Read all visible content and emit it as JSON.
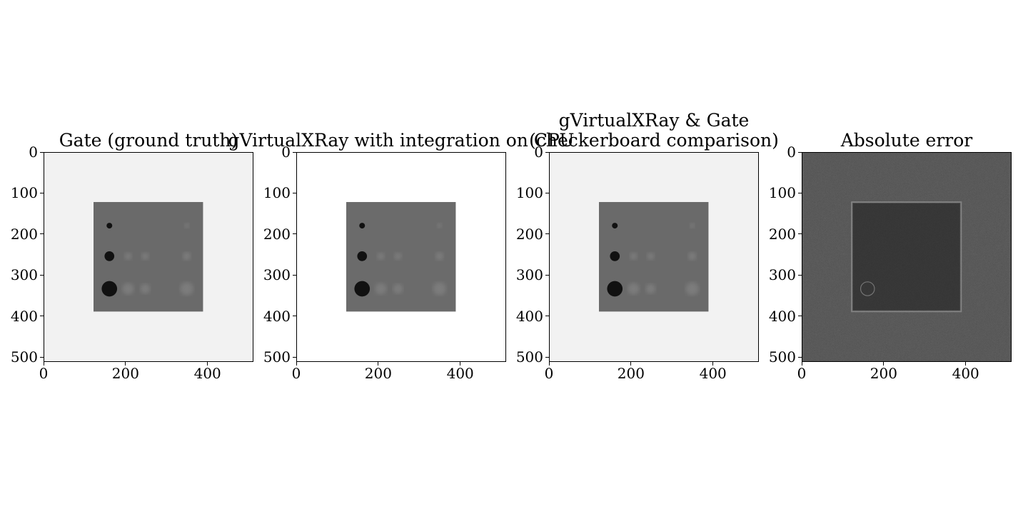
{
  "figure": {
    "panels": [
      {
        "id": "gate",
        "title_lines": [
          "Gate (ground truth)"
        ],
        "kind": "phantom",
        "background_color": "#f2f2f2",
        "square_color": "#6a6a6a"
      },
      {
        "id": "gvxr_cpu",
        "title_lines": [
          "gVirtualXRay with integration on CPU"
        ],
        "kind": "phantom",
        "background_color": "#ffffff",
        "square_color": "#6b6b6b"
      },
      {
        "id": "checkerboard",
        "title_lines": [
          "gVirtualXRay & Gate",
          "(checkerboard comparison)"
        ],
        "kind": "phantom",
        "background_color": "#f2f2f2",
        "square_color": "#6a6a6a"
      },
      {
        "id": "abs_error",
        "title_lines": [
          "Absolute error"
        ],
        "kind": "error",
        "background_color": "#2a2a2a",
        "square_color": "#1c1c1c"
      }
    ],
    "image_size": 512,
    "x_ticks": [
      "0",
      "200",
      "400"
    ],
    "y_ticks": [
      "0",
      "100",
      "200",
      "300",
      "400",
      "500"
    ]
  }
}
